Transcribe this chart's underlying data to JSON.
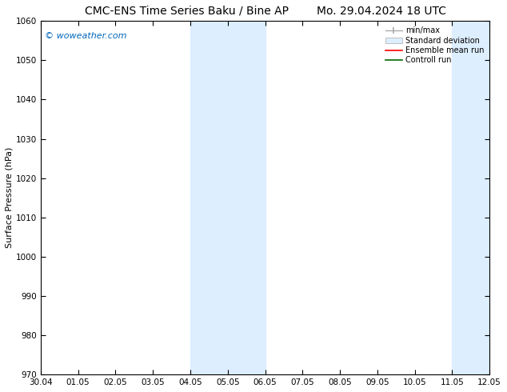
{
  "title_left": "CMC-ENS Time Series Baku / Bine AP",
  "title_right": "Mo. 29.04.2024 18 UTC",
  "ylabel": "Surface Pressure (hPa)",
  "ylim": [
    970,
    1060
  ],
  "yticks": [
    970,
    980,
    990,
    1000,
    1010,
    1020,
    1030,
    1040,
    1050,
    1060
  ],
  "xtick_labels": [
    "30.04",
    "01.05",
    "02.05",
    "03.05",
    "04.05",
    "05.05",
    "06.05",
    "07.05",
    "08.05",
    "09.05",
    "10.05",
    "11.05",
    "12.05"
  ],
  "shaded_regions": [
    {
      "xstart": 4,
      "xend": 6
    },
    {
      "xstart": 11,
      "xend": 12
    }
  ],
  "shaded_color": "#ddeeff",
  "watermark": "© woweather.com",
  "watermark_color": "#0066bb",
  "legend_labels": [
    "min/max",
    "Standard deviation",
    "Ensemble mean run",
    "Controll run"
  ],
  "legend_line_color": "#aaaaaa",
  "legend_patch_color": "#ddeeff",
  "legend_patch_edge": "#aaaaaa",
  "legend_red": "#ff0000",
  "legend_green": "#006600",
  "background_color": "#ffffff",
  "spine_color": "#000000",
  "tick_color": "#000000",
  "title_fontsize": 10,
  "tick_fontsize": 7.5,
  "ylabel_fontsize": 8,
  "watermark_fontsize": 8,
  "legend_fontsize": 7
}
